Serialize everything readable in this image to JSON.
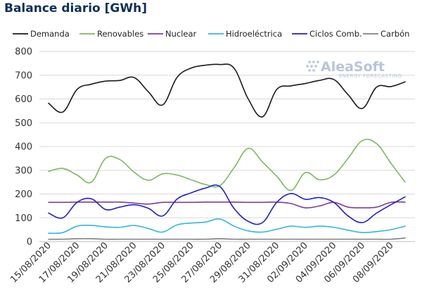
{
  "title": "Balance diario [GWh]",
  "watermark": {
    "brand": "AleaSoft",
    "tagline": "ENERGY FORECASTING"
  },
  "chart_data": {
    "type": "line",
    "x": [
      "15/08/2020",
      "16/08/2020",
      "17/08/2020",
      "18/08/2020",
      "19/08/2020",
      "20/08/2020",
      "21/08/2020",
      "22/08/2020",
      "23/08/2020",
      "24/08/2020",
      "25/08/2020",
      "26/08/2020",
      "27/08/2020",
      "28/08/2020",
      "29/08/2020",
      "30/08/2020",
      "31/08/2020",
      "01/09/2020",
      "02/09/2020",
      "03/09/2020",
      "04/09/2020",
      "05/09/2020",
      "06/09/2020",
      "07/09/2020",
      "08/09/2020",
      "09/09/2020"
    ],
    "x_tick_labels": [
      "15/08/2020",
      "17/08/2020",
      "19/08/2020",
      "21/08/2020",
      "23/08/2020",
      "25/08/2020",
      "27/08/2020",
      "29/08/2020",
      "31/08/2020",
      "02/09/2020",
      "04/09/2020",
      "06/09/2020",
      "08/09/2020"
    ],
    "ylim": [
      0,
      800
    ],
    "y_ticks": [
      0,
      100,
      200,
      300,
      400,
      500,
      600,
      700,
      800
    ],
    "grid": true,
    "legend_position": "top",
    "series": [
      {
        "name": "Demanda",
        "color": "#1a1a1a",
        "values": [
          582,
          545,
          640,
          662,
          675,
          678,
          690,
          630,
          575,
          690,
          730,
          742,
          745,
          730,
          600,
          525,
          640,
          655,
          665,
          678,
          682,
          618,
          560,
          650,
          652,
          672
        ]
      },
      {
        "name": "Renovables",
        "color": "#7cb95a",
        "values": [
          295,
          308,
          280,
          250,
          350,
          345,
          292,
          258,
          285,
          280,
          260,
          240,
          235,
          310,
          392,
          335,
          275,
          215,
          290,
          260,
          280,
          350,
          425,
          412,
          330,
          250
        ]
      },
      {
        "name": "Nuclear",
        "color": "#7a3f9a",
        "values": [
          165,
          165,
          166,
          166,
          166,
          166,
          162,
          158,
          165,
          165,
          165,
          166,
          166,
          166,
          165,
          165,
          166,
          160,
          142,
          150,
          165,
          145,
          142,
          145,
          165,
          166
        ]
      },
      {
        "name": "Hidroeléctrica",
        "color": "#2fb8e0",
        "values": [
          35,
          38,
          65,
          68,
          62,
          60,
          68,
          55,
          40,
          70,
          78,
          82,
          95,
          65,
          45,
          40,
          52,
          65,
          60,
          65,
          60,
          48,
          38,
          42,
          50,
          65
        ]
      },
      {
        "name": "Ciclos Comb.",
        "color": "#1f1fd0",
        "values": [
          120,
          100,
          165,
          180,
          135,
          145,
          155,
          140,
          108,
          178,
          205,
          225,
          232,
          140,
          85,
          80,
          165,
          202,
          178,
          185,
          165,
          108,
          80,
          120,
          155,
          188
        ]
      },
      {
        "name": "Carbón",
        "color": "#808080",
        "values": [
          10,
          10,
          12,
          12,
          10,
          10,
          10,
          10,
          10,
          10,
          10,
          10,
          12,
          10,
          10,
          10,
          10,
          10,
          10,
          10,
          10,
          10,
          10,
          10,
          10,
          15
        ]
      }
    ]
  }
}
